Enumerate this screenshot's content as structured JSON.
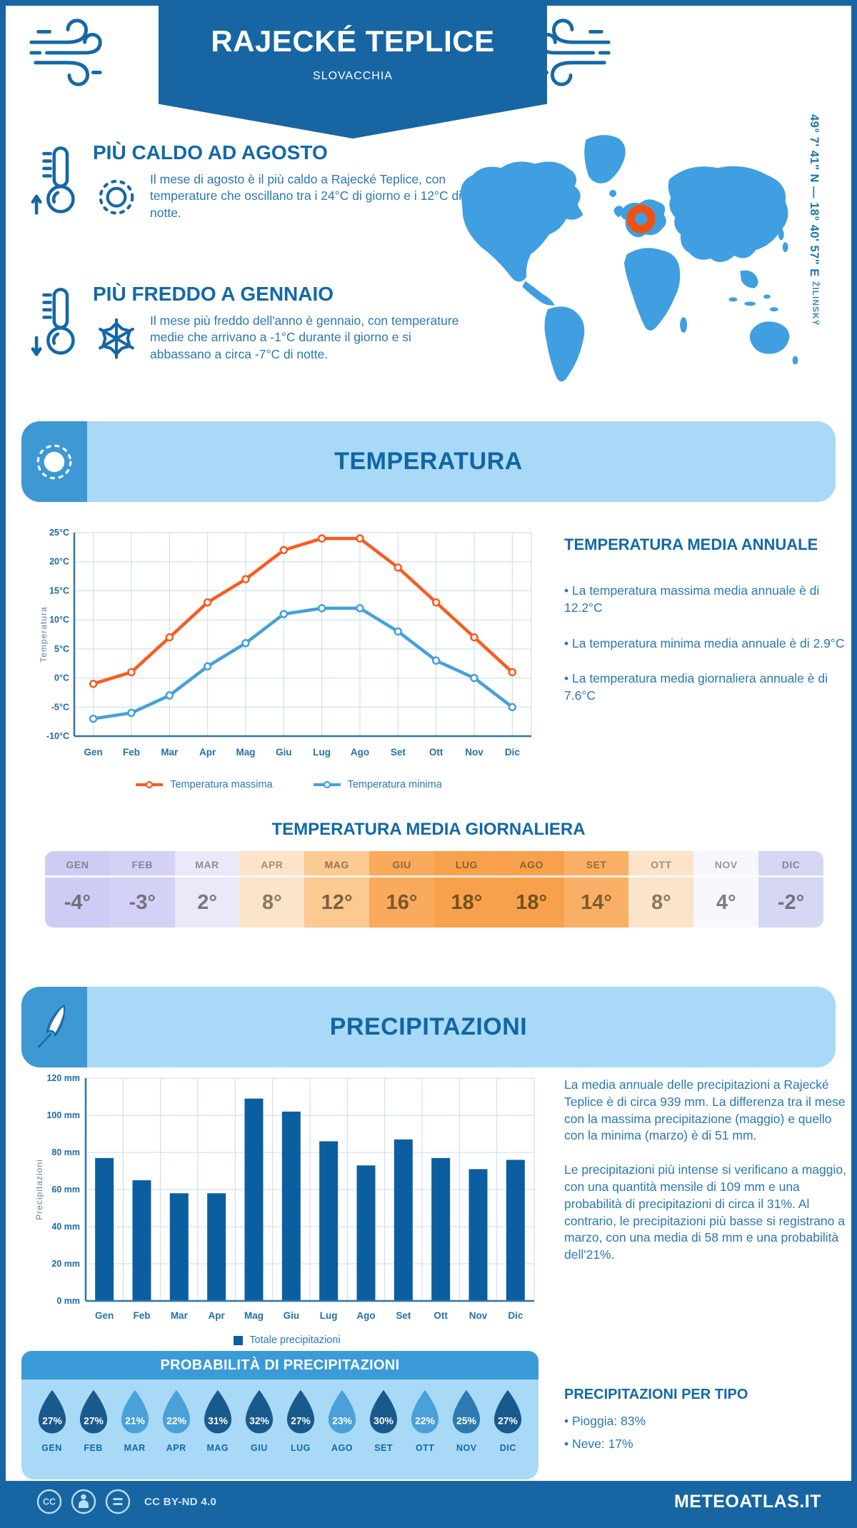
{
  "colors": {
    "frame": "#1766a3",
    "heading": "#1269a7",
    "body": "#2878b4",
    "band_bg": "#a8d9f6",
    "band_icon_bg": "#3d98d4",
    "prob_header_bg": "#3b9ad8",
    "map": "#3f9fe0",
    "marker": "#f3500f",
    "line_max": "#fa5a1f",
    "line_min": "#44a0dc",
    "bar": "#0b5fa0",
    "grid": "#c6dbeb",
    "axis": "#2e76ad",
    "drop_dark": "#185a8c",
    "drop_light": "#4aa1d9",
    "drop_medium": "#2d7ab1"
  },
  "header": {
    "title": "RAJECKÉ TEPLICE",
    "subtitle": "SLOVACCHIA",
    "coordinates": "49° 7' 41\" N — 18° 40' 57\" E",
    "region": "ŽILINSKÝ"
  },
  "highlights": {
    "warm": {
      "title": "PIÙ CALDO AD AGOSTO",
      "text": "Il mese di agosto è il più caldo a Rajecké Teplice, con temperature che oscillano tra i 24°C di giorno e i 12°C di notte."
    },
    "cold": {
      "title": "PIÙ FREDDO A GENNAIO",
      "text": "Il mese più freddo dell'anno è gennaio, con temperature medie che arrivano a -1°C durante il giorno e si abbassano a circa -7°C di notte."
    }
  },
  "temperature": {
    "band_title": "TEMPERATURA",
    "annual_title": "TEMPERATURA MEDIA ANNUALE",
    "annual_bullets": [
      "• La temperatura massima media annuale è di 12.2°C",
      "• La temperatura minima media annuale è di 2.9°C",
      "• La temperatura media giornaliera annuale è di 7.6°C"
    ],
    "daily_title": "TEMPERATURA MEDIA GIORNALIERA",
    "daily_table": {
      "months": [
        "GEN",
        "FEB",
        "MAR",
        "APR",
        "MAG",
        "GIU",
        "LUG",
        "AGO",
        "SET",
        "OTT",
        "NOV",
        "DIC"
      ],
      "values": [
        "-4°",
        "-3°",
        "2°",
        "8°",
        "12°",
        "16°",
        "18°",
        "18°",
        "14°",
        "8°",
        "4°",
        "-2°"
      ],
      "cell_colors": [
        "#cdccf4",
        "#d3d2f6",
        "#e9e9fa",
        "#fbe4c9",
        "#fbc992",
        "#f9aa5c",
        "#f8a14c",
        "#f8a14c",
        "#f9b066",
        "#fbe4c9",
        "#f7f7fd",
        "#d6d6f5"
      ],
      "text_colors": [
        "#71717b",
        "#71717b",
        "#77777f",
        "#877a64",
        "#7e603a",
        "#7a5830",
        "#74521f",
        "#74521f",
        "#7c5c32",
        "#877a64",
        "#7d7d85",
        "#72727c"
      ]
    }
  },
  "precipitation": {
    "band_title": "PRECIPITAZIONI",
    "paragraphs": [
      "La media annuale delle precipitazioni a Rajecké Teplice è di circa 939 mm. La differenza tra il mese con la massima precipitazione (maggio) e quello con la minima (marzo) è di 51 mm.",
      "Le precipitazioni più intense si verificano a maggio, con una quantità mensile di 109 mm e una probabilità di precipitazioni di circa il 31%. Al contrario, le precipitazioni più basse si registrano a marzo, con una media di 58 mm e una probabilità dell'21%."
    ],
    "probability_title": "PROBABILITÀ DI PRECIPITAZIONI",
    "probability": {
      "months": [
        "GEN",
        "FEB",
        "MAR",
        "APR",
        "MAG",
        "GIU",
        "LUG",
        "AGO",
        "SET",
        "OTT",
        "NOV",
        "DIC"
      ],
      "values": [
        "27%",
        "27%",
        "21%",
        "22%",
        "31%",
        "32%",
        "27%",
        "23%",
        "30%",
        "22%",
        "25%",
        "27%"
      ],
      "shades": [
        "dark",
        "dark",
        "light",
        "light",
        "dark",
        "dark",
        "dark",
        "light",
        "dark",
        "light",
        "medium",
        "dark"
      ]
    },
    "per_type_title": "PRECIPITAZIONI PER TIPO",
    "per_type_bullets": [
      "• Pioggia: 83%",
      "• Neve: 17%"
    ]
  },
  "footer": {
    "license": "CC BY-ND 4.0",
    "site": "METEOATLAS.IT"
  },
  "chart_data": [
    {
      "type": "line",
      "x": [
        "Gen",
        "Feb",
        "Mar",
        "Apr",
        "Mag",
        "Giu",
        "Lug",
        "Ago",
        "Set",
        "Ott",
        "Nov",
        "Dic"
      ],
      "series": [
        {
          "name": "Temperatura massima",
          "values": [
            -1,
            1,
            7,
            13,
            17,
            22,
            24,
            24,
            19,
            13,
            7,
            1
          ],
          "color": "#fa5a1f"
        },
        {
          "name": "Temperatura minima",
          "values": [
            -7,
            -6,
            -3,
            2,
            6,
            11,
            12,
            12,
            8,
            3,
            0,
            -5
          ],
          "color": "#44a0dc"
        }
      ],
      "ylabel": "Temperatura",
      "ylim": [
        -10,
        25
      ],
      "ytick_step": 5,
      "ytick_suffix": "°C",
      "grid": true,
      "legend_position": "bottom"
    },
    {
      "type": "bar",
      "x": [
        "Gen",
        "Feb",
        "Mar",
        "Apr",
        "Mag",
        "Giu",
        "Lug",
        "Ago",
        "Set",
        "Ott",
        "Nov",
        "Dic"
      ],
      "series": [
        {
          "name": "Totale precipitazioni",
          "values": [
            77,
            65,
            58,
            58,
            109,
            102,
            86,
            73,
            87,
            77,
            71,
            76
          ],
          "color": "#0b5fa0"
        }
      ],
      "ylabel": "Precipitazioni",
      "ylim": [
        0,
        120
      ],
      "ytick_step": 20,
      "ytick_suffix": " mm",
      "grid": true,
      "legend_position": "bottom"
    },
    {
      "type": "table",
      "title": "TEMPERATURA MEDIA GIORNALIERA",
      "unit": "°C",
      "categories": [
        "GEN",
        "FEB",
        "MAR",
        "APR",
        "MAG",
        "GIU",
        "LUG",
        "AGO",
        "SET",
        "OTT",
        "NOV",
        "DIC"
      ],
      "values": [
        -4,
        -3,
        2,
        8,
        12,
        16,
        18,
        18,
        14,
        8,
        4,
        -2
      ]
    },
    {
      "type": "table",
      "title": "PROBABILITÀ DI PRECIPITAZIONI",
      "unit": "%",
      "categories": [
        "GEN",
        "FEB",
        "MAR",
        "APR",
        "MAG",
        "GIU",
        "LUG",
        "AGO",
        "SET",
        "OTT",
        "NOV",
        "DIC"
      ],
      "values": [
        27,
        27,
        21,
        22,
        31,
        32,
        27,
        23,
        30,
        22,
        25,
        27
      ]
    }
  ]
}
